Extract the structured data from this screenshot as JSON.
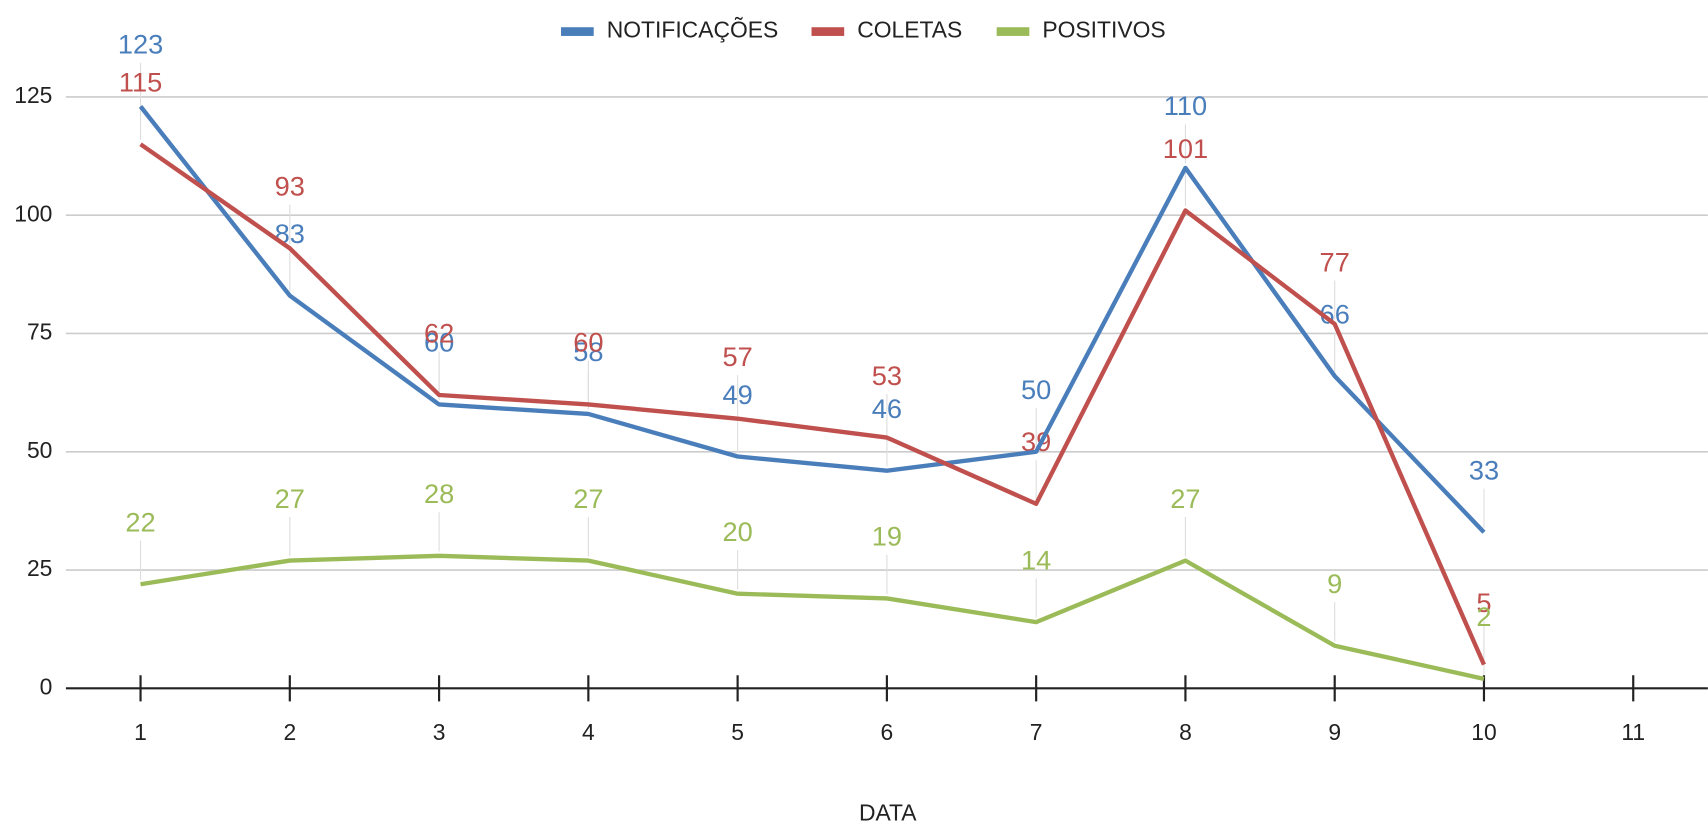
{
  "chart_data": {
    "type": "line",
    "x_label": "DATA",
    "x": [
      1,
      2,
      3,
      4,
      5,
      6,
      7,
      8,
      9,
      10
    ],
    "series": [
      {
        "name": "NOTIFICAÇÕES",
        "color": "#4a7ebb",
        "values": [
          123,
          83,
          60,
          58,
          49,
          46,
          50,
          110,
          66,
          33
        ]
      },
      {
        "name": "COLETAS",
        "color": "#c0504d",
        "values": [
          115,
          93,
          62,
          60,
          57,
          53,
          39,
          101,
          77,
          5
        ]
      },
      {
        "name": "POSITIVOS",
        "color": "#9bbb59",
        "values": [
          22,
          27,
          28,
          27,
          20,
          19,
          14,
          27,
          9,
          2
        ]
      }
    ],
    "xlim": [
      0.5,
      11.5
    ],
    "xticks": [
      1,
      2,
      3,
      4,
      5,
      6,
      7,
      8,
      9,
      10,
      11
    ],
    "ylim": [
      0,
      125
    ],
    "yticks": [
      0,
      25,
      50,
      75,
      100,
      125
    ],
    "grid": true,
    "legend": "top"
  }
}
